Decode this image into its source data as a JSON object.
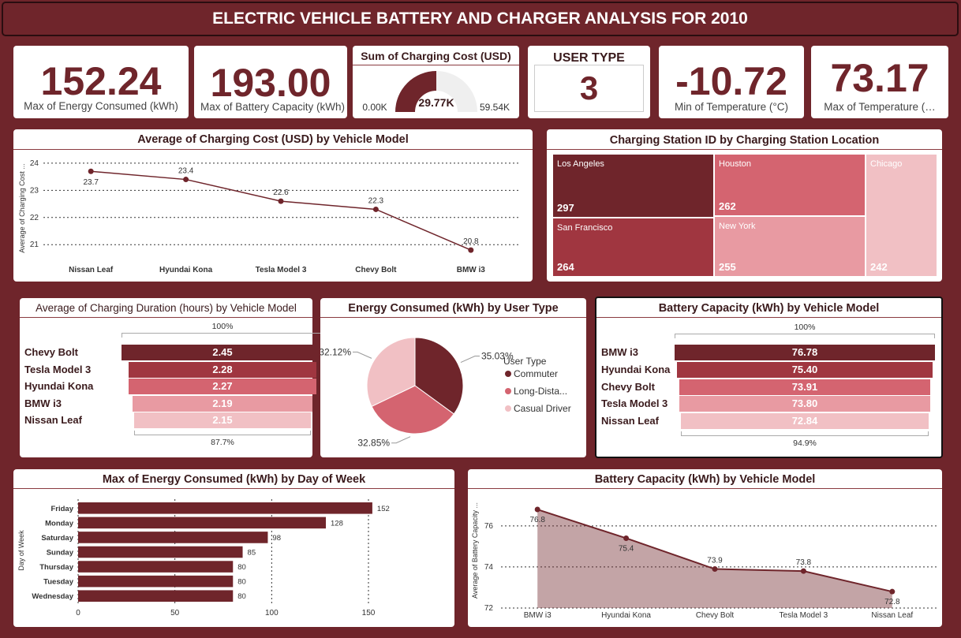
{
  "title": "ELECTRIC VEHICLE BATTERY AND CHARGER ANALYSIS FOR 2010",
  "colors": {
    "dark": "#6f252b",
    "c1": "#a03640",
    "c2": "#d46470",
    "c3": "#e89aa2",
    "c4": "#f1c0c4"
  },
  "kpis": [
    {
      "value": "152.24",
      "label": "Max of Energy Consumed (kWh)"
    },
    {
      "value": "193.00",
      "label": "Max of Battery Capacity (kWh)"
    },
    {
      "value": "-10.72",
      "label": "Min of Temperature (°C)"
    },
    {
      "value": "73.17",
      "label": "Max of Temperature (…"
    }
  ],
  "gauge": {
    "title": "Sum of Charging Cost (USD)",
    "value": "29.77K",
    "min": "0.00K",
    "max": "59.54K",
    "fraction": 0.5
  },
  "user_type_card": {
    "title": "USER TYPE",
    "value": "3"
  },
  "chart_data": [
    {
      "id": "avg_cost_line",
      "type": "line",
      "title": "Average of Charging Cost (USD) by Vehicle Model",
      "ylabel": "Average of Charging Cost ...",
      "categories": [
        "Nissan Leaf",
        "Hyundai Kona",
        "Tesla Model 3",
        "Chevy Bolt",
        "BMW i3"
      ],
      "values": [
        23.7,
        23.4,
        22.6,
        22.3,
        20.8
      ],
      "labels": [
        "23.7",
        "23.4",
        "22.6",
        "22.3",
        "20.8"
      ],
      "yticks": [
        "24",
        "23",
        "22",
        "21"
      ],
      "ylim": [
        20.6,
        24.2
      ]
    },
    {
      "id": "station_treemap",
      "type": "treemap",
      "title": "Charging Station ID by Charging Station Location",
      "items": [
        {
          "label": "Los Angeles",
          "value": "297"
        },
        {
          "label": "San Francisco",
          "value": "264"
        },
        {
          "label": "Houston",
          "value": "262"
        },
        {
          "label": "New York",
          "value": "255"
        },
        {
          "label": "Chicago",
          "value": "242"
        }
      ]
    },
    {
      "id": "duration_funnel",
      "type": "funnel",
      "title": "Average of Charging Duration (hours) by Vehicle Model",
      "top_label": "100%",
      "bottom_label": "87.7%",
      "categories": [
        "Chevy Bolt",
        "Tesla Model 3",
        "Hyundai Kona",
        "BMW i3",
        "Nissan Leaf"
      ],
      "values": [
        2.45,
        2.28,
        2.27,
        2.19,
        2.15
      ],
      "labels": [
        "2.45",
        "2.28",
        "2.27",
        "2.19",
        "2.15"
      ]
    },
    {
      "id": "energy_pie",
      "type": "pie",
      "title": "Energy Consumed (kWh) by User Type",
      "legend_title": "User Type",
      "categories": [
        "Commuter",
        "Long-Dista...",
        "Casual Driver"
      ],
      "values": [
        35.03,
        32.85,
        32.12
      ],
      "labels": [
        "35.03%",
        "32.85%",
        "32.12%"
      ]
    },
    {
      "id": "battery_funnel",
      "type": "funnel",
      "title": "Battery Capacity (kWh) by Vehicle Model",
      "top_label": "100%",
      "bottom_label": "94.9%",
      "categories": [
        "BMW i3",
        "Hyundai Kona",
        "Chevy Bolt",
        "Tesla Model 3",
        "Nissan Leaf"
      ],
      "values": [
        76.78,
        75.4,
        73.91,
        73.8,
        72.84
      ],
      "labels": [
        "76.78",
        "75.40",
        "73.91",
        "73.80",
        "72.84"
      ]
    },
    {
      "id": "energy_day_bar",
      "type": "bar",
      "title": "Max of Energy Consumed (kWh) by Day of Week",
      "ylabel": "Day of Week",
      "categories": [
        "Friday",
        "Monday",
        "Saturday",
        "Sunday",
        "Thursday",
        "Tuesday",
        "Wednesday"
      ],
      "values": [
        152,
        128,
        98,
        85,
        80,
        80,
        80
      ],
      "labels": [
        "152",
        "128",
        "98",
        "85",
        "80",
        "80",
        "80"
      ],
      "xticks": [
        "0",
        "50",
        "100",
        "150"
      ],
      "xlim": [
        0,
        150
      ]
    },
    {
      "id": "battery_area",
      "type": "area",
      "title": "Battery Capacity (kWh) by Vehicle Model",
      "ylabel": "Average of Battery Capacity ...",
      "categories": [
        "BMW i3",
        "Hyundai Kona",
        "Chevy Bolt",
        "Tesla Model 3",
        "Nissan Leaf"
      ],
      "values": [
        76.8,
        75.4,
        73.9,
        73.8,
        72.8
      ],
      "labels": [
        "76.8",
        "75.4",
        "73.9",
        "73.8",
        "72.8"
      ],
      "yticks": [
        "76",
        "74",
        "72"
      ],
      "ylim": [
        72,
        77.3
      ]
    }
  ]
}
